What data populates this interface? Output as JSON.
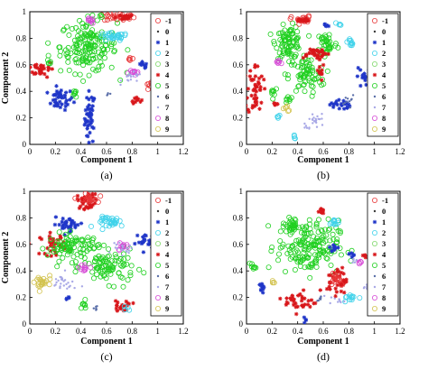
{
  "chart_data": [
    {
      "type": "scatter",
      "label": "(a)",
      "xlabel": "Component 1",
      "ylabel": "Component 2",
      "xlim": [
        0,
        1.2
      ],
      "ylim": [
        0,
        1
      ],
      "xticks": [
        "0",
        "0.2",
        "0.4",
        "0.6",
        "0.8",
        "1",
        "1.2"
      ],
      "yticks": [
        "0",
        "0.2",
        "0.4",
        "0.6",
        "0.8",
        "1"
      ],
      "legend": [
        "-1",
        "0",
        "1",
        "2",
        "3",
        "4",
        "5",
        "6",
        "7",
        "8",
        "9"
      ],
      "clusters": [
        {
          "class": "1",
          "x": 0.47,
          "y": 0.2,
          "sx": 0.02,
          "sy": 0.1,
          "n": 44
        },
        {
          "class": "1",
          "x": 0.24,
          "y": 0.34,
          "sx": 0.05,
          "sy": 0.04,
          "n": 40
        },
        {
          "class": "1",
          "x": 0.88,
          "y": 0.59,
          "sx": 0.02,
          "sy": 0.02,
          "n": 10
        },
        {
          "class": "-1",
          "x": 0.7,
          "y": 0.96,
          "sx": 0.06,
          "sy": 0.015,
          "n": 30
        },
        {
          "class": "4",
          "x": 0.72,
          "y": 0.96,
          "sx": 0.05,
          "sy": 0.01,
          "n": 18
        },
        {
          "class": "4",
          "x": 0.09,
          "y": 0.57,
          "sx": 0.05,
          "sy": 0.03,
          "n": 36
        },
        {
          "class": "4",
          "x": 0.83,
          "y": 0.34,
          "sx": 0.02,
          "sy": 0.015,
          "n": 10
        },
        {
          "class": "-1",
          "x": 0.94,
          "y": 0.45,
          "sx": 0.015,
          "sy": 0.015,
          "n": 6
        },
        {
          "class": "5",
          "x": 0.46,
          "y": 0.74,
          "sx": 0.11,
          "sy": 0.1,
          "n": 170
        },
        {
          "class": "5",
          "x": 0.15,
          "y": 0.62,
          "sx": 0.01,
          "sy": 0.015,
          "n": 6
        },
        {
          "class": "5",
          "x": 0.36,
          "y": 0.38,
          "sx": 0.015,
          "sy": 0.015,
          "n": 6
        },
        {
          "class": "2",
          "x": 0.65,
          "y": 0.81,
          "sx": 0.06,
          "sy": 0.015,
          "n": 32
        },
        {
          "class": "8",
          "x": 0.47,
          "y": 0.93,
          "sx": 0.015,
          "sy": 0.01,
          "n": 10
        },
        {
          "class": "8",
          "x": 0.82,
          "y": 0.55,
          "sx": 0.02,
          "sy": 0.015,
          "n": 10
        },
        {
          "class": "7",
          "x": 0.8,
          "y": 0.5,
          "sx": 0.04,
          "sy": 0.02,
          "n": 18
        },
        {
          "class": "-1",
          "x": 0.78,
          "y": 0.64,
          "sx": 0.01,
          "sy": 0.01,
          "n": 6
        },
        {
          "class": "6",
          "x": 0.62,
          "y": 0.38,
          "sx": 0.01,
          "sy": 0.01,
          "n": 4
        }
      ]
    },
    {
      "type": "scatter",
      "label": "(b)",
      "xlabel": "Component 1",
      "ylabel": "",
      "xlim": [
        0,
        1.2
      ],
      "ylim": [
        0,
        1
      ],
      "xticks": [
        "0",
        "0.2",
        "0.4",
        "0.6",
        "0.8",
        "1",
        "1.2"
      ],
      "yticks": [
        "0",
        "0.2",
        "0.4",
        "0.6",
        "0.8",
        "1"
      ],
      "legend": [
        "-1",
        "0",
        "1",
        "2",
        "3",
        "4",
        "5",
        "6",
        "7",
        "8",
        "9"
      ],
      "clusters": [
        {
          "class": "5",
          "x": 0.33,
          "y": 0.77,
          "sx": 0.05,
          "sy": 0.06,
          "n": 90
        },
        {
          "class": "5",
          "x": 0.47,
          "y": 0.52,
          "sx": 0.07,
          "sy": 0.07,
          "n": 70
        },
        {
          "class": "5",
          "x": 0.63,
          "y": 0.76,
          "sx": 0.04,
          "sy": 0.05,
          "n": 40
        },
        {
          "class": "5",
          "x": 0.21,
          "y": 0.4,
          "sx": 0.02,
          "sy": 0.02,
          "n": 8
        },
        {
          "class": "5",
          "x": 0.33,
          "y": 0.34,
          "sx": 0.015,
          "sy": 0.015,
          "n": 8
        },
        {
          "class": "4",
          "x": 0.07,
          "y": 0.41,
          "sx": 0.03,
          "sy": 0.1,
          "n": 48
        },
        {
          "class": "4",
          "x": 0.53,
          "y": 0.69,
          "sx": 0.06,
          "sy": 0.02,
          "n": 30
        },
        {
          "class": "4",
          "x": 0.57,
          "y": 0.58,
          "sx": 0.015,
          "sy": 0.05,
          "n": 16
        },
        {
          "class": "4",
          "x": 0.22,
          "y": 0.3,
          "sx": 0.01,
          "sy": 0.01,
          "n": 6
        },
        {
          "class": "1",
          "x": 0.94,
          "y": 0.5,
          "sx": 0.04,
          "sy": 0.04,
          "n": 28
        },
        {
          "class": "1",
          "x": 0.73,
          "y": 0.3,
          "sx": 0.04,
          "sy": 0.02,
          "n": 22
        },
        {
          "class": "1",
          "x": 0.63,
          "y": 0.9,
          "sx": 0.01,
          "sy": 0.01,
          "n": 6
        },
        {
          "class": "-1",
          "x": 0.43,
          "y": 0.94,
          "sx": 0.04,
          "sy": 0.015,
          "n": 22
        },
        {
          "class": "4",
          "x": 0.44,
          "y": 0.93,
          "sx": 0.03,
          "sy": 0.01,
          "n": 10
        },
        {
          "class": "2",
          "x": 0.82,
          "y": 0.77,
          "sx": 0.015,
          "sy": 0.015,
          "n": 10
        },
        {
          "class": "2",
          "x": 0.72,
          "y": 0.9,
          "sx": 0.01,
          "sy": 0.01,
          "n": 4
        },
        {
          "class": "2",
          "x": 0.38,
          "y": 0.05,
          "sx": 0.01,
          "sy": 0.01,
          "n": 4
        },
        {
          "class": "2",
          "x": 0.25,
          "y": 0.2,
          "sx": 0.01,
          "sy": 0.01,
          "n": 4
        },
        {
          "class": "8",
          "x": 0.25,
          "y": 0.62,
          "sx": 0.01,
          "sy": 0.01,
          "n": 6
        },
        {
          "class": "7",
          "x": 0.55,
          "y": 0.18,
          "sx": 0.04,
          "sy": 0.03,
          "n": 20
        },
        {
          "class": "7",
          "x": 0.47,
          "y": 0.14,
          "sx": 0.015,
          "sy": 0.015,
          "n": 6
        },
        {
          "class": "6",
          "x": 0.8,
          "y": 0.33,
          "sx": 0.02,
          "sy": 0.02,
          "n": 10
        },
        {
          "class": "9",
          "x": 0.3,
          "y": 0.27,
          "sx": 0.015,
          "sy": 0.015,
          "n": 6
        }
      ]
    },
    {
      "type": "scatter",
      "label": "(c)",
      "xlabel": "Component 1",
      "ylabel": "Component 2",
      "xlim": [
        0,
        1.2
      ],
      "ylim": [
        0,
        1
      ],
      "xticks": [
        "0",
        "0.2",
        "0.4",
        "0.6",
        "0.8",
        "1",
        "1.2"
      ],
      "yticks": [
        "0",
        "0.2",
        "0.4",
        "0.6",
        "0.8",
        "1"
      ],
      "legend": [
        "-1",
        "0",
        "1",
        "2",
        "3",
        "4",
        "5",
        "6",
        "7",
        "8",
        "9"
      ],
      "clusters": [
        {
          "class": "4",
          "x": 0.45,
          "y": 0.93,
          "sx": 0.04,
          "sy": 0.03,
          "n": 40
        },
        {
          "class": "-1",
          "x": 0.46,
          "y": 0.94,
          "sx": 0.035,
          "sy": 0.02,
          "n": 16
        },
        {
          "class": "1",
          "x": 0.3,
          "y": 0.75,
          "sx": 0.06,
          "sy": 0.025,
          "n": 34
        },
        {
          "class": "1",
          "x": 0.91,
          "y": 0.62,
          "sx": 0.04,
          "sy": 0.03,
          "n": 24
        },
        {
          "class": "2",
          "x": 0.65,
          "y": 0.77,
          "sx": 0.06,
          "sy": 0.02,
          "n": 32
        },
        {
          "class": "4",
          "x": 0.18,
          "y": 0.6,
          "sx": 0.05,
          "sy": 0.04,
          "n": 36
        },
        {
          "class": "5",
          "x": 0.34,
          "y": 0.58,
          "sx": 0.1,
          "sy": 0.05,
          "n": 90
        },
        {
          "class": "5",
          "x": 0.62,
          "y": 0.43,
          "sx": 0.1,
          "sy": 0.06,
          "n": 90
        },
        {
          "class": "5",
          "x": 0.42,
          "y": 0.14,
          "sx": 0.015,
          "sy": 0.015,
          "n": 8
        },
        {
          "class": "9",
          "x": 0.09,
          "y": 0.31,
          "sx": 0.04,
          "sy": 0.03,
          "n": 22
        },
        {
          "class": "7",
          "x": 0.26,
          "y": 0.3,
          "sx": 0.05,
          "sy": 0.04,
          "n": 26
        },
        {
          "class": "8",
          "x": 0.43,
          "y": 0.43,
          "sx": 0.02,
          "sy": 0.02,
          "n": 10
        },
        {
          "class": "8",
          "x": 0.72,
          "y": 0.58,
          "sx": 0.02,
          "sy": 0.02,
          "n": 10
        },
        {
          "class": "7",
          "x": 0.72,
          "y": 0.56,
          "sx": 0.04,
          "sy": 0.02,
          "n": 18
        },
        {
          "class": "4",
          "x": 0.72,
          "y": 0.14,
          "sx": 0.04,
          "sy": 0.02,
          "n": 20
        },
        {
          "class": "6",
          "x": 0.52,
          "y": 0.12,
          "sx": 0.015,
          "sy": 0.01,
          "n": 6
        },
        {
          "class": "1",
          "x": 0.3,
          "y": 0.2,
          "sx": 0.01,
          "sy": 0.01,
          "n": 4
        },
        {
          "class": "2",
          "x": 0.77,
          "y": 0.12,
          "sx": 0.01,
          "sy": 0.01,
          "n": 4
        }
      ]
    },
    {
      "type": "scatter",
      "label": "(d)",
      "xlabel": "Component 1",
      "ylabel": "",
      "xlim": [
        0,
        1.2
      ],
      "ylim": [
        0,
        1
      ],
      "xticks": [
        "0",
        "0.2",
        "0.4",
        "0.6",
        "0.8",
        "1",
        "1.2"
      ],
      "yticks": [
        "0",
        "0.2",
        "0.4",
        "0.6",
        "0.8",
        "1"
      ],
      "legend": [
        "-1",
        "0",
        "1",
        "2",
        "3",
        "4",
        "5",
        "6",
        "7",
        "8",
        "9"
      ],
      "clusters": [
        {
          "class": "5",
          "x": 0.48,
          "y": 0.58,
          "sx": 0.12,
          "sy": 0.1,
          "n": 170
        },
        {
          "class": "5",
          "x": 0.36,
          "y": 0.74,
          "sx": 0.03,
          "sy": 0.03,
          "n": 30
        },
        {
          "class": "5",
          "x": 0.05,
          "y": 0.43,
          "sx": 0.01,
          "sy": 0.015,
          "n": 8
        },
        {
          "class": "4",
          "x": 0.71,
          "y": 0.33,
          "sx": 0.04,
          "sy": 0.05,
          "n": 40
        },
        {
          "class": "4",
          "x": 0.42,
          "y": 0.17,
          "sx": 0.06,
          "sy": 0.04,
          "n": 34
        },
        {
          "class": "4",
          "x": 0.58,
          "y": 0.85,
          "sx": 0.02,
          "sy": 0.015,
          "n": 10
        },
        {
          "class": "4",
          "x": 0.92,
          "y": 0.52,
          "sx": 0.01,
          "sy": 0.01,
          "n": 4
        },
        {
          "class": "-1",
          "x": 0.7,
          "y": 0.35,
          "sx": 0.03,
          "sy": 0.03,
          "n": 16
        },
        {
          "class": "1",
          "x": 0.12,
          "y": 0.27,
          "sx": 0.01,
          "sy": 0.03,
          "n": 10
        },
        {
          "class": "1",
          "x": 0.69,
          "y": 0.57,
          "sx": 0.02,
          "sy": 0.015,
          "n": 10
        },
        {
          "class": "1",
          "x": 0.82,
          "y": 0.53,
          "sx": 0.015,
          "sy": 0.01,
          "n": 6
        },
        {
          "class": "1",
          "x": 0.47,
          "y": 0.03,
          "sx": 0.01,
          "sy": 0.01,
          "n": 4
        },
        {
          "class": "2",
          "x": 0.69,
          "y": 0.76,
          "sx": 0.02,
          "sy": 0.015,
          "n": 12
        },
        {
          "class": "2",
          "x": 0.82,
          "y": 0.2,
          "sx": 0.03,
          "sy": 0.015,
          "n": 12
        },
        {
          "class": "7",
          "x": 0.95,
          "y": 0.27,
          "sx": 0.02,
          "sy": 0.015,
          "n": 10
        },
        {
          "class": "7",
          "x": 0.71,
          "y": 0.18,
          "sx": 0.03,
          "sy": 0.015,
          "n": 10
        },
        {
          "class": "7",
          "x": 0.85,
          "y": 0.48,
          "sx": 0.015,
          "sy": 0.01,
          "n": 6
        },
        {
          "class": "8",
          "x": 0.88,
          "y": 0.47,
          "sx": 0.01,
          "sy": 0.01,
          "n": 4
        },
        {
          "class": "6",
          "x": 0.58,
          "y": 0.19,
          "sx": 0.015,
          "sy": 0.01,
          "n": 6
        },
        {
          "class": "9",
          "x": 0.21,
          "y": 0.31,
          "sx": 0.01,
          "sy": 0.01,
          "n": 4
        }
      ]
    }
  ],
  "colors": {
    "-1": "#e8393a",
    "0": "#3a3a3a",
    "1": "#1f35c8",
    "2": "#3fd2ea",
    "3": "#7fd86a",
    "4": "#d8161a",
    "5": "#20d020",
    "6": "#5a6ea8",
    "7": "#a8a8e6",
    "8": "#d64ad6",
    "9": "#d2c24c"
  },
  "markers": {
    "-1": "ring",
    "0": "dot",
    "1": "star",
    "2": "ring",
    "3": "ring",
    "4": "star",
    "5": "ring",
    "6": "dot",
    "7": "dot",
    "8": "ring",
    "9": "ring"
  }
}
